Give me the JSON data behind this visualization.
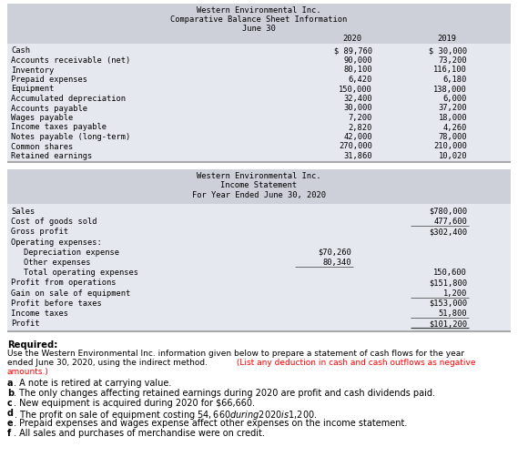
{
  "title1": "Western Environmental Inc.",
  "title2": "Comparative Balance Sheet Information",
  "title3": "June 30",
  "col_headers": [
    "2020",
    "2019"
  ],
  "balance_sheet_rows": [
    [
      "Cash",
      "$ 89,760",
      "$ 30,000"
    ],
    [
      "Accounts receivable (net)",
      "90,000",
      "73,200"
    ],
    [
      "Inventory",
      "80,100",
      "116,100"
    ],
    [
      "Prepaid expenses",
      "6,420",
      "6,180"
    ],
    [
      "Equipment",
      "150,000",
      "138,000"
    ],
    [
      "Accumulated depreciation",
      "32,400",
      "6,000"
    ],
    [
      "Accounts payable",
      "30,000",
      "37,200"
    ],
    [
      "Wages payable",
      "7,200",
      "18,000"
    ],
    [
      "Income taxes payable",
      "2,820",
      "4,260"
    ],
    [
      "Notes payable (long-term)",
      "42,000",
      "78,000"
    ],
    [
      "Common shares",
      "270,000",
      "210,000"
    ],
    [
      "Retained earnings",
      "31,860",
      "10,020"
    ]
  ],
  "is_title1": "Western Environmental Inc.",
  "is_title2": "Income Statement",
  "is_title3": "For Year Ended June 30, 2020",
  "income_statement_rows": [
    [
      "Sales",
      "",
      "$780,000",
      false,
      false
    ],
    [
      "Cost of goods sold",
      "",
      "477,600",
      true,
      false
    ],
    [
      "Gross profit",
      "",
      "$302,400",
      false,
      false
    ],
    [
      "Operating expenses:",
      "",
      "",
      false,
      false
    ],
    [
      "  Depreciation expense",
      "$70,260",
      "",
      false,
      false
    ],
    [
      "  Other expenses",
      "80,340",
      "",
      true,
      false
    ],
    [
      "  Total operating expenses",
      "",
      "150,600",
      false,
      false
    ],
    [
      "Profit from operations",
      "",
      "$151,800",
      false,
      false
    ],
    [
      "Gain on sale of equipment",
      "",
      "1,200",
      true,
      false
    ],
    [
      "Profit before taxes",
      "",
      "$153,000",
      false,
      false
    ],
    [
      "Income taxes",
      "",
      "51,800",
      true,
      false
    ],
    [
      "Profit",
      "",
      "$101,200",
      false,
      true
    ]
  ],
  "bg_color": "#cdd0d9",
  "table_bg": "#e6e8f0",
  "notes": [
    [
      "a",
      ". A note is retired at carrying value."
    ],
    [
      "b",
      ". The only changes affecting retained earnings during 2020 are profit and cash dividends paid."
    ],
    [
      "c",
      ". New equipment is acquired during 2020 for $66,660."
    ],
    [
      "d",
      ". The profit on sale of equipment costing $54,660 during 2020 is $1,200."
    ],
    [
      "e",
      ". Prepaid expenses and wages expense affect other expenses on the income statement."
    ],
    [
      "f",
      ". All sales and purchases of merchandise were on credit."
    ]
  ]
}
